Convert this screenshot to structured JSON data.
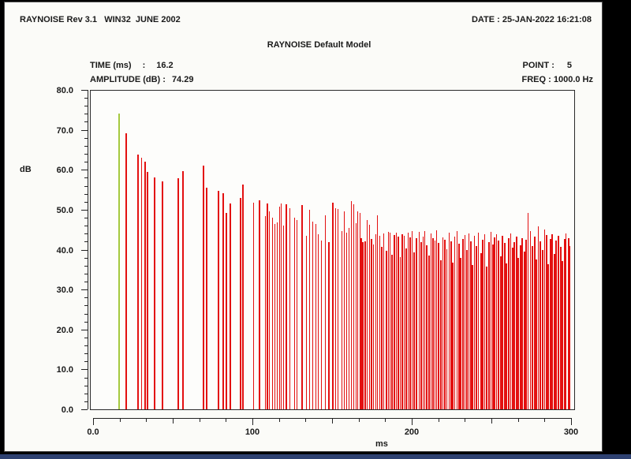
{
  "window": {
    "header_left": "RAYNOISE Rev 3.1   WIN32  JUNE 2002",
    "header_right": "DATE : 25-JAN-2022 16:21:08"
  },
  "readout": {
    "time_label": "TIME (ms)",
    "time_separator": ":",
    "time_value": "16.2",
    "amplitude_label": "AMPLITUDE (dB) :",
    "amplitude_value": "74.29",
    "point_label": "POINT :",
    "point_value": "5",
    "freq_label": "FREQ : 1000.0 Hz"
  },
  "chart_data": {
    "type": "bar",
    "subtype": "echogram-impulse-response",
    "title": "RAYNOISE Default Model",
    "xlabel": "ms",
    "ylabel": "dB",
    "xlim": [
      0,
      300
    ],
    "ylim": [
      0,
      80
    ],
    "grid": false,
    "x_ticks": [
      {
        "v": 0,
        "label": "0.0"
      },
      {
        "v": 100,
        "label": "100"
      },
      {
        "v": 200,
        "label": "200"
      },
      {
        "v": 300,
        "label": "300"
      }
    ],
    "x_minor_divisions_per_major": 6,
    "y_ticks": [
      {
        "v": 80,
        "label": "80.0"
      },
      {
        "v": 70,
        "label": "70.0"
      },
      {
        "v": 60,
        "label": "60.0"
      },
      {
        "v": 50,
        "label": "50.0"
      },
      {
        "v": 40,
        "label": "40.0"
      },
      {
        "v": 30,
        "label": "30.0"
      },
      {
        "v": 20,
        "label": "20.0"
      },
      {
        "v": 10,
        "label": "10.0"
      },
      {
        "v": 0,
        "label": "0.0"
      }
    ],
    "y_minor_step": 2,
    "colors": {
      "spike": "#e31010",
      "direct_sound": "#a5c93f",
      "axis": "#1c1c1c"
    },
    "direct_sound": {
      "ms": 16.2,
      "dB": 74.29
    },
    "spikes": [
      [
        21.0,
        69.3,
        2
      ],
      [
        28.4,
        64.0,
        2
      ],
      [
        30.6,
        63.2,
        1
      ],
      [
        32.6,
        62.2,
        2
      ],
      [
        34.3,
        59.6,
        2
      ],
      [
        38.6,
        58.3,
        2
      ],
      [
        43.3,
        57.3,
        2
      ],
      [
        53.3,
        58.0,
        2
      ],
      [
        56.2,
        59.8,
        2
      ],
      [
        69.4,
        61.2,
        2
      ],
      [
        71.1,
        55.7,
        2
      ],
      [
        78.6,
        54.8,
        2
      ],
      [
        81.5,
        54.2,
        2
      ],
      [
        83.5,
        49.3,
        2
      ],
      [
        86.3,
        51.6,
        2
      ],
      [
        92.6,
        53.1,
        2
      ],
      [
        94.2,
        56.4,
        2
      ],
      [
        100.9,
        51.8,
        1
      ],
      [
        104.6,
        52.4,
        2
      ],
      [
        108.0,
        48.5,
        1
      ],
      [
        109.4,
        51.7,
        2
      ],
      [
        110.7,
        49.8,
        1
      ],
      [
        112.4,
        48.2,
        1
      ],
      [
        114.0,
        46.6,
        1
      ],
      [
        115.7,
        46.9,
        1
      ],
      [
        117.0,
        50.8,
        1
      ],
      [
        118.2,
        51.6,
        1
      ],
      [
        119.4,
        46.2,
        1
      ],
      [
        121.1,
        51.5,
        2
      ],
      [
        123.6,
        50.4,
        1
      ],
      [
        126.4,
        48.1,
        1
      ],
      [
        128.0,
        47.5,
        1
      ],
      [
        131.4,
        51.2,
        2
      ],
      [
        134.0,
        43.5,
        1
      ],
      [
        136.0,
        50.1,
        1
      ],
      [
        137.6,
        47.1,
        1
      ],
      [
        139.6,
        46.6,
        1
      ],
      [
        141.5,
        44.0,
        1
      ],
      [
        143.2,
        42.3,
        1
      ],
      [
        145.9,
        48.7,
        1
      ],
      [
        148.2,
        41.9,
        2
      ],
      [
        150.3,
        51.8,
        2
      ],
      [
        152.3,
        50.4,
        1
      ],
      [
        153.8,
        50.2,
        1
      ],
      [
        156.0,
        44.8,
        1
      ],
      [
        157.5,
        49.8,
        1
      ],
      [
        159.0,
        44.3,
        1
      ],
      [
        160.8,
        45.5,
        1
      ],
      [
        162.3,
        52.2,
        1
      ],
      [
        163.8,
        51.4,
        1
      ],
      [
        165.0,
        46.8,
        1
      ],
      [
        166.3,
        49.8,
        1
      ],
      [
        167.5,
        49.4,
        1
      ],
      [
        168.5,
        43.0,
        2
      ],
      [
        169.5,
        42.0,
        2
      ],
      [
        170.8,
        42.2,
        2
      ],
      [
        172.0,
        47.6,
        1
      ],
      [
        173.3,
        46.4,
        1
      ],
      [
        174.5,
        42.8,
        2
      ],
      [
        176.0,
        41.4,
        1
      ],
      [
        177.3,
        44.0,
        1
      ],
      [
        178.5,
        48.8,
        1
      ],
      [
        180.0,
        43.6,
        1
      ],
      [
        181.3,
        40.8,
        2
      ],
      [
        182.5,
        44.2,
        1
      ],
      [
        184.0,
        39.8,
        2
      ],
      [
        185.3,
        44.6,
        1
      ],
      [
        186.5,
        44.3,
        1
      ],
      [
        187.8,
        38.8,
        2
      ],
      [
        189.0,
        43.8,
        2
      ],
      [
        190.3,
        44.4,
        1
      ],
      [
        191.5,
        43.4,
        2
      ],
      [
        192.8,
        38.2,
        1
      ],
      [
        194.0,
        44.0,
        2
      ],
      [
        195.3,
        43.6,
        1
      ],
      [
        196.5,
        40.4,
        2
      ],
      [
        197.8,
        44.4,
        1
      ],
      [
        199.0,
        43.2,
        2
      ],
      [
        200.3,
        44.8,
        1
      ],
      [
        201.5,
        39.4,
        2
      ],
      [
        202.8,
        43.0,
        2
      ],
      [
        204.5,
        44.6,
        1
      ],
      [
        205.8,
        42.0,
        2
      ],
      [
        207.0,
        43.4,
        1
      ],
      [
        208.3,
        44.8,
        1
      ],
      [
        209.5,
        41.2,
        2
      ],
      [
        210.8,
        38.6,
        2
      ],
      [
        212.0,
        44.2,
        1
      ],
      [
        213.3,
        43.0,
        2
      ],
      [
        214.5,
        42.4,
        1
      ],
      [
        215.8,
        44.9,
        1
      ],
      [
        217.0,
        41.8,
        2
      ],
      [
        218.3,
        37.4,
        2
      ],
      [
        219.5,
        43.1,
        1
      ],
      [
        220.8,
        42.6,
        2
      ],
      [
        222.0,
        40.2,
        1
      ],
      [
        223.3,
        44.3,
        1
      ],
      [
        224.5,
        42.1,
        2
      ],
      [
        225.8,
        36.8,
        2
      ],
      [
        227.0,
        43.4,
        1
      ],
      [
        228.3,
        44.7,
        1
      ],
      [
        229.5,
        41.6,
        2
      ],
      [
        230.8,
        38.0,
        2
      ],
      [
        232.0,
        42.8,
        2
      ],
      [
        233.3,
        43.8,
        1
      ],
      [
        234.5,
        40.0,
        2
      ],
      [
        235.8,
        44.1,
        1
      ],
      [
        237.0,
        42.2,
        2
      ],
      [
        238.3,
        36.2,
        2
      ],
      [
        239.5,
        43.5,
        1
      ],
      [
        240.8,
        41.0,
        2
      ],
      [
        242.0,
        44.4,
        1
      ],
      [
        243.3,
        39.2,
        2
      ],
      [
        244.5,
        42.6,
        2
      ],
      [
        245.8,
        43.9,
        1
      ],
      [
        247.0,
        35.8,
        2
      ],
      [
        248.3,
        42.0,
        2
      ],
      [
        249.5,
        44.5,
        1
      ],
      [
        250.8,
        41.4,
        2
      ],
      [
        252.0,
        43.2,
        2
      ],
      [
        253.3,
        44.0,
        1
      ],
      [
        254.5,
        42.4,
        2
      ],
      [
        255.8,
        38.4,
        2
      ],
      [
        257.0,
        43.6,
        2
      ],
      [
        258.3,
        41.8,
        2
      ],
      [
        259.5,
        36.6,
        2
      ],
      [
        260.8,
        42.9,
        2
      ],
      [
        262.0,
        44.2,
        1
      ],
      [
        263.3,
        40.6,
        2
      ],
      [
        264.5,
        42.0,
        2
      ],
      [
        265.8,
        43.3,
        2
      ],
      [
        267.0,
        38.0,
        2
      ],
      [
        268.3,
        41.2,
        2
      ],
      [
        269.5,
        43.0,
        2
      ],
      [
        270.8,
        39.6,
        2
      ],
      [
        272.0,
        42.5,
        2
      ],
      [
        273.2,
        49.4,
        1
      ],
      [
        274.5,
        44.8,
        1
      ],
      [
        275.8,
        41.0,
        2
      ],
      [
        277.0,
        43.4,
        2
      ],
      [
        278.3,
        37.6,
        2
      ],
      [
        279.5,
        45.9,
        1
      ],
      [
        280.8,
        42.2,
        2
      ],
      [
        282.0,
        40.0,
        2
      ],
      [
        283.3,
        45.2,
        1
      ],
      [
        284.5,
        43.8,
        2
      ],
      [
        285.8,
        36.4,
        2
      ],
      [
        287.0,
        42.7,
        2
      ],
      [
        288.3,
        44.0,
        2
      ],
      [
        289.5,
        39.0,
        2
      ],
      [
        290.8,
        42.4,
        2
      ],
      [
        292.0,
        43.6,
        2
      ],
      [
        293.3,
        40.8,
        2
      ],
      [
        294.5,
        37.2,
        2
      ],
      [
        295.8,
        42.8,
        2
      ],
      [
        297.0,
        44.2,
        1
      ],
      [
        298.3,
        43.0,
        2
      ],
      [
        299.2,
        41.0,
        2
      ]
    ]
  }
}
